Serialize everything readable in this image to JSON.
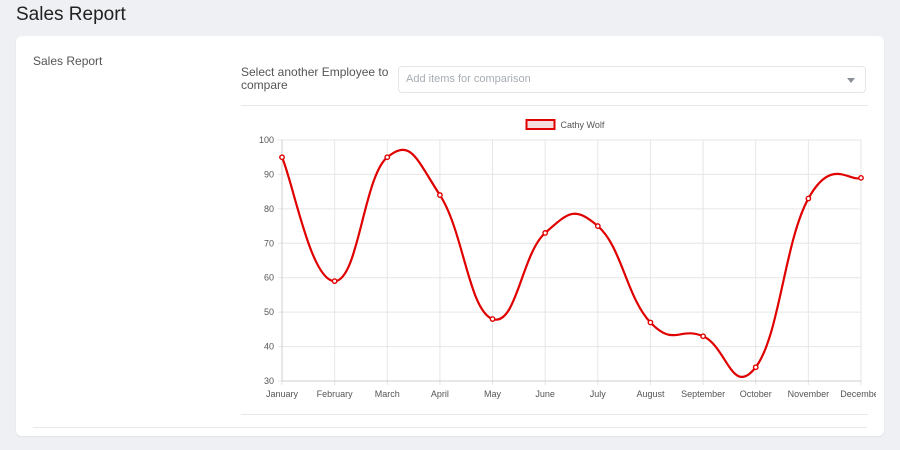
{
  "page": {
    "title": "Sales Report"
  },
  "card": {
    "label": "Sales Report",
    "compare_label": "Select another Employee to compare",
    "compare_placeholder": "Add items for comparison"
  },
  "colors": {
    "series": "#e00000",
    "grid": "#e6e6e6",
    "background": "#eef0f3"
  },
  "icons": {
    "select_caret": "caret-down-icon"
  },
  "chart_data": {
    "type": "line",
    "categories": [
      "January",
      "February",
      "March",
      "April",
      "May",
      "June",
      "July",
      "August",
      "September",
      "October",
      "November",
      "December"
    ],
    "series": [
      {
        "name": "Cathy Wolf",
        "values": [
          95,
          59,
          95,
          84,
          48,
          73,
          75,
          47,
          43,
          34,
          83,
          89
        ]
      }
    ],
    "ylim": [
      30,
      100
    ],
    "yticks": [
      30,
      40,
      50,
      60,
      70,
      80,
      90,
      100
    ],
    "grid": true,
    "legend": "top-center",
    "curve": "smooth"
  }
}
